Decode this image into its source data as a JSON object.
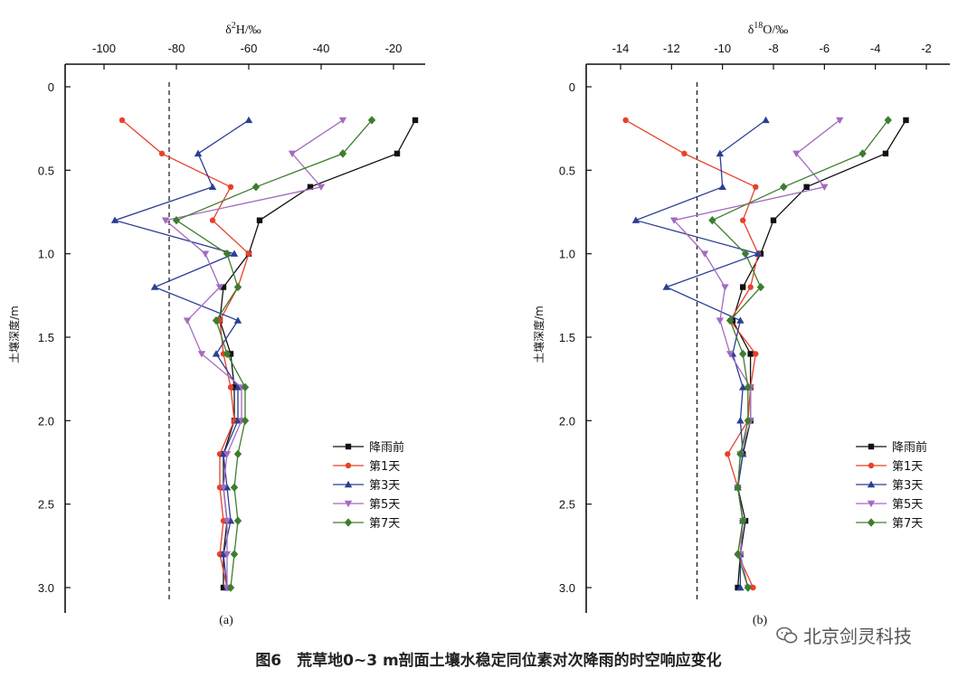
{
  "caption": "图6　荒草地0~3 m剖面土壤水稳定同位素对次降雨的时空响应变化",
  "watermark": "北京剑灵科技",
  "chart_data": [
    {
      "type": "line",
      "panel_label": "(a)",
      "xlabel_main": "δ",
      "xlabel_sup": "2",
      "xlabel_rest": "H/‰",
      "ylabel": "土壤深度/m",
      "xlim": [
        -105,
        -10
      ],
      "ylim": [
        3.15,
        0
      ],
      "xticks": [
        -100,
        -80,
        -60,
        -40,
        -20
      ],
      "yticks": [
        0,
        0.5,
        1.0,
        1.5,
        2.0,
        2.5,
        3.0
      ],
      "ytick_labels": [
        "0",
        "0.5",
        "1.0",
        "1.5",
        "2.0",
        "2.5",
        "3.0"
      ],
      "x_axis_position": "top",
      "reference_line_x": -82,
      "legend_position": "lower-right",
      "depths": [
        0.2,
        0.4,
        0.6,
        0.8,
        1.0,
        1.2,
        1.4,
        1.6,
        1.8,
        2.0,
        2.2,
        2.4,
        2.6,
        2.8,
        3.0
      ],
      "series": [
        {
          "name": "降雨前",
          "color": "#111111",
          "marker": "square",
          "values": [
            -14,
            -19,
            -43,
            -57,
            -60,
            -67,
            -68,
            -65,
            -64,
            -64,
            -67,
            -67,
            -66,
            -67,
            -67
          ]
        },
        {
          "name": "第1天",
          "color": "#e8412a",
          "marker": "circle",
          "values": [
            -95,
            -84,
            -65,
            -70,
            -60,
            -63,
            -68,
            -67,
            -65,
            -64,
            -68,
            -68,
            -67,
            -68,
            -66
          ]
        },
        {
          "name": "第3天",
          "color": "#2b3f93",
          "marker": "triangle-up",
          "values": [
            -60,
            -74,
            -70,
            -97,
            -64,
            -86,
            -63,
            -69,
            -63,
            -63,
            -67,
            -66,
            -65,
            -67,
            -66
          ]
        },
        {
          "name": "第5天",
          "color": "#a46bc0",
          "marker": "triangle-down",
          "values": [
            -34,
            -48,
            -40,
            -83,
            -72,
            -68,
            -77,
            -73,
            -62,
            -62,
            -66,
            -67,
            -66,
            -66,
            -66
          ]
        },
        {
          "name": "第7天",
          "color": "#3d7d2e",
          "marker": "diamond",
          "values": [
            -26,
            -34,
            -58,
            -80,
            -66,
            -63,
            -69,
            -66,
            -61,
            -61,
            -63,
            -64,
            -63,
            -64,
            -65
          ]
        }
      ]
    },
    {
      "type": "line",
      "panel_label": "(b)",
      "xlabel_main": "δ",
      "xlabel_sup": "18",
      "xlabel_rest": "O/‰",
      "ylabel": "土壤深度/m",
      "xlim": [
        -15,
        -1
      ],
      "ylim": [
        3.15,
        0
      ],
      "xticks": [
        -14,
        -12,
        -10,
        -8,
        -6,
        -4,
        -2
      ],
      "yticks": [
        0,
        0.5,
        1.0,
        1.5,
        2.0,
        2.5,
        3.0
      ],
      "ytick_labels": [
        "0",
        "0.5",
        "1.0",
        "1.5",
        "2.0",
        "2.5",
        "3.0"
      ],
      "x_axis_position": "top",
      "reference_line_x": -11,
      "legend_position": "lower-right",
      "depths": [
        0.2,
        0.4,
        0.6,
        0.8,
        1.0,
        1.2,
        1.4,
        1.6,
        1.8,
        2.0,
        2.2,
        2.4,
        2.6,
        2.8,
        3.0
      ],
      "series": [
        {
          "name": "降雨前",
          "color": "#111111",
          "marker": "square",
          "values": [
            -2.8,
            -3.6,
            -6.7,
            -8.0,
            -8.5,
            -9.2,
            -9.6,
            -8.9,
            -8.9,
            -8.9,
            -9.2,
            -9.4,
            -9.1,
            -9.3,
            -9.4
          ]
        },
        {
          "name": "第1天",
          "color": "#e8412a",
          "marker": "circle",
          "values": [
            -13.8,
            -11.5,
            -8.7,
            -9.2,
            -8.6,
            -8.9,
            -9.7,
            -8.7,
            -8.9,
            -9.0,
            -9.8,
            -9.4,
            -9.2,
            -9.4,
            -8.8
          ]
        },
        {
          "name": "第3天",
          "color": "#2b3f93",
          "marker": "triangle-up",
          "values": [
            -8.3,
            -10.1,
            -10.0,
            -13.4,
            -8.6,
            -12.2,
            -9.3,
            -9.6,
            -9.2,
            -9.3,
            -9.2,
            -9.4,
            -9.2,
            -9.3,
            -9.3
          ]
        },
        {
          "name": "第5天",
          "color": "#a46bc0",
          "marker": "triangle-down",
          "values": [
            -5.4,
            -7.1,
            -6.0,
            -11.9,
            -10.7,
            -9.9,
            -10.1,
            -9.7,
            -8.9,
            -8.9,
            -9.3,
            -9.4,
            -9.2,
            -9.3,
            -9.0
          ]
        },
        {
          "name": "第7天",
          "color": "#3d7d2e",
          "marker": "diamond",
          "values": [
            -3.5,
            -4.5,
            -7.6,
            -10.4,
            -9.1,
            -8.5,
            -9.7,
            -9.2,
            -9.0,
            -9.0,
            -9.3,
            -9.4,
            -9.2,
            -9.4,
            -9.0
          ]
        }
      ]
    }
  ]
}
